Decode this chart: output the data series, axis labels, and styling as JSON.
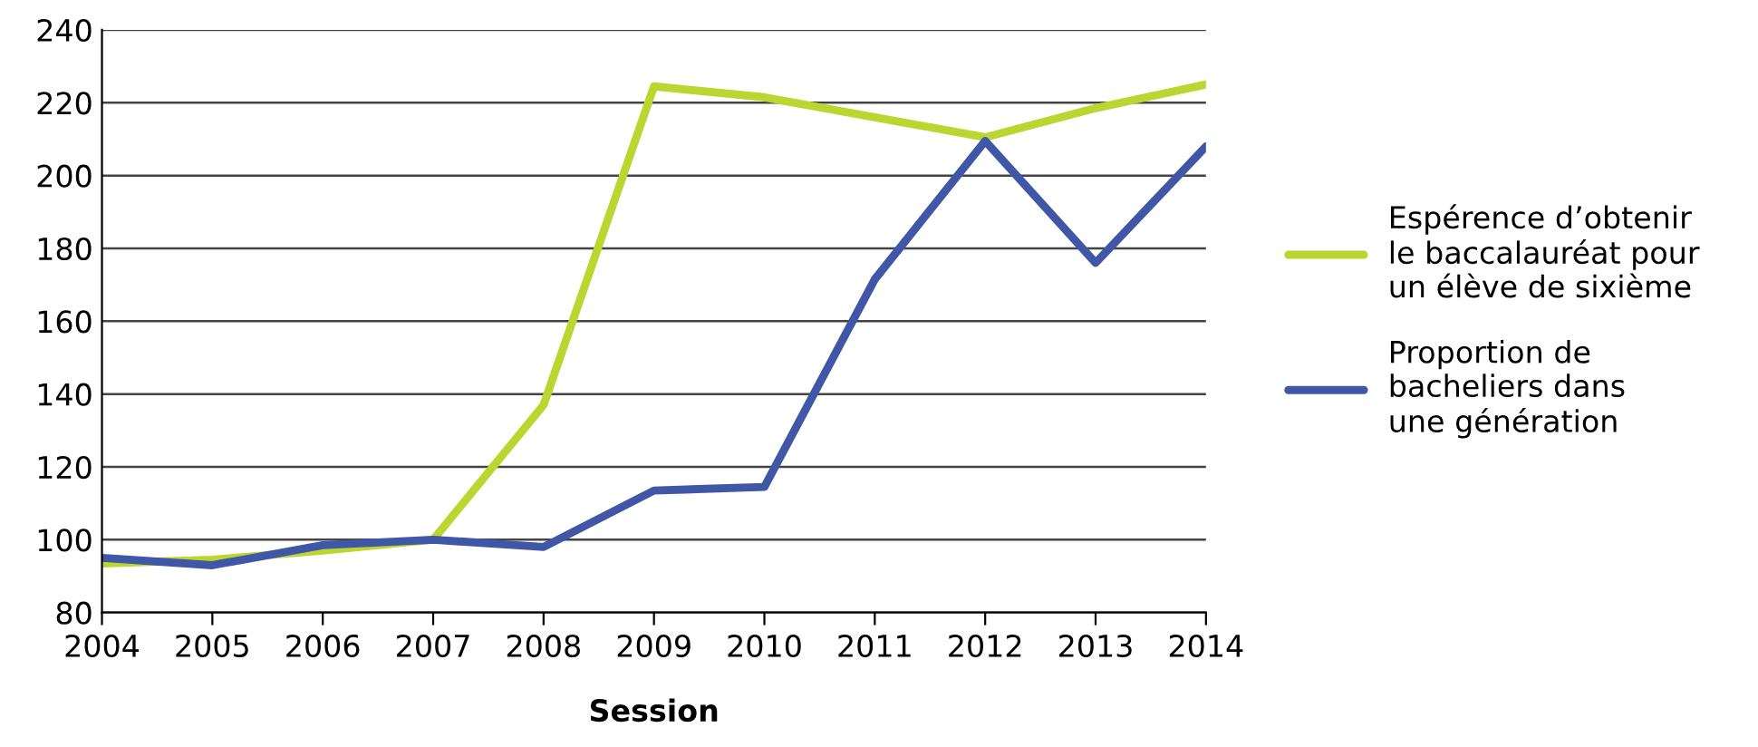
{
  "chart_data": {
    "type": "line",
    "xlabel": "Session",
    "x": [
      2004,
      2005,
      2006,
      2007,
      2008,
      2009,
      2010,
      2011,
      2012,
      2013,
      2014
    ],
    "xlim": [
      2004,
      2014
    ],
    "xticks": [
      2004,
      2005,
      2006,
      2007,
      2008,
      2009,
      2010,
      2011,
      2012,
      2013,
      2014
    ],
    "ylim": [
      80,
      240
    ],
    "yticks": [
      80,
      100,
      120,
      140,
      160,
      180,
      200,
      220,
      240
    ],
    "grid": "y",
    "legend": "right",
    "marker": "none",
    "line_style": "solid",
    "series": [
      {
        "name": "Espérence d’obtenir\nle baccalauréat pour\nun élève de sixième",
        "color": "#bcd631",
        "values": [
          93.5,
          94.5,
          97,
          100,
          137,
          224.5,
          221.5,
          216,
          210.5,
          218.5,
          225
        ]
      },
      {
        "name": "Proportion de\nbacheliers dans\nune génération",
        "color": "#3f57a6",
        "values": [
          95,
          93,
          98.5,
          100,
          98,
          113.5,
          114.5,
          171.5,
          209.5,
          176,
          208
        ]
      }
    ]
  }
}
